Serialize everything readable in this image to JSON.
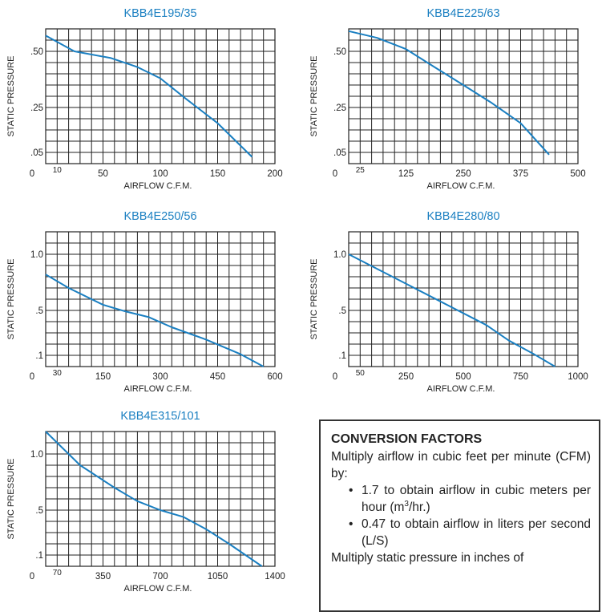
{
  "chart_data": [
    {
      "type": "line",
      "title": "KBB4E195/35",
      "xlabel": "AIRFLOW C.F.M.",
      "ylabel": "STATIC PRESSURE",
      "xlim": [
        0,
        200
      ],
      "ylim": [
        0,
        0.6
      ],
      "x_ticks": [
        "0",
        "10",
        "50",
        "100",
        "150",
        "200"
      ],
      "y_ticks": [
        ".05",
        ".25",
        ".50"
      ],
      "grid": true,
      "series": [
        {
          "x": [
            0,
            25,
            57,
            80,
            100,
            122,
            150,
            180
          ],
          "y": [
            0.57,
            0.5,
            0.47,
            0.43,
            0.38,
            0.29,
            0.18,
            0.03
          ]
        }
      ]
    },
    {
      "type": "line",
      "title": "KBB4E225/63",
      "xlabel": "AIRFLOW C.F.M.",
      "ylabel": "STATIC PRESSURE",
      "xlim": [
        0,
        500
      ],
      "ylim": [
        0,
        0.6
      ],
      "x_ticks": [
        "0",
        "25",
        "125",
        "250",
        "375",
        "500"
      ],
      "y_ticks": [
        ".05",
        ".25",
        ".50"
      ],
      "grid": true,
      "series": [
        {
          "x": [
            0,
            62,
            125,
            187,
            250,
            312,
            375,
            437
          ],
          "y": [
            0.59,
            0.56,
            0.51,
            0.43,
            0.35,
            0.27,
            0.18,
            0.04
          ]
        }
      ]
    },
    {
      "type": "line",
      "title": "KBB4E250/56",
      "xlabel": "AIRFLOW C.F.M.",
      "ylabel": "STATIC PRESSURE",
      "xlim": [
        0,
        600
      ],
      "ylim": [
        0,
        1.2
      ],
      "x_ticks": [
        "0",
        "30",
        "150",
        "300",
        "450",
        "600"
      ],
      "y_ticks": [
        ".1",
        ".5",
        "1.0"
      ],
      "grid": true,
      "series": [
        {
          "x": [
            0,
            60,
            150,
            210,
            270,
            330,
            420,
            510,
            570
          ],
          "y": [
            0.82,
            0.7,
            0.55,
            0.49,
            0.44,
            0.35,
            0.24,
            0.11,
            0.0
          ]
        }
      ]
    },
    {
      "type": "line",
      "title": "KBB4E280/80",
      "xlabel": "AIRFLOW C.F.M.",
      "ylabel": "STATIC PRESSURE",
      "xlim": [
        0,
        1000
      ],
      "ylim": [
        0,
        1.2
      ],
      "x_ticks": [
        "0",
        "50",
        "250",
        "500",
        "750",
        "1000"
      ],
      "y_ticks": [
        ".1",
        ".5",
        "1.0"
      ],
      "grid": true,
      "series": [
        {
          "x": [
            0,
            200,
            400,
            600,
            700,
            800,
            900
          ],
          "y": [
            1.0,
            0.79,
            0.58,
            0.37,
            0.23,
            0.12,
            0.0
          ]
        }
      ]
    },
    {
      "type": "line",
      "title": "KBB4E315/101",
      "xlabel": "AIRFLOW C.F.M.",
      "ylabel": "STATIC PRESSURE",
      "xlim": [
        0,
        1400
      ],
      "ylim": [
        0,
        1.2
      ],
      "x_ticks": [
        "0",
        "70",
        "350",
        "700",
        "1050",
        "1400"
      ],
      "y_ticks": [
        ".1",
        ".5",
        "1.0"
      ],
      "grid": true,
      "series": [
        {
          "x": [
            0,
            140,
            210,
            420,
            560,
            700,
            840,
            980,
            1120,
            1320
          ],
          "y": [
            1.2,
            1.0,
            0.9,
            0.7,
            0.58,
            0.5,
            0.44,
            0.33,
            0.2,
            0.0
          ]
        }
      ]
    }
  ],
  "conversion": {
    "heading": "CONVERSION FACTORS",
    "intro": "Multiply airflow in cubic feet per minute (CFM) by:",
    "bullets": [
      {
        "before": "1.7 to obtain airflow in cubic meters per hour (m",
        "sup": "3",
        "after": "/hr.)"
      },
      {
        "before": "0.47 to obtain airflow in liters per second (L/S)",
        "sup": "",
        "after": ""
      }
    ],
    "footer": "Multiply static pressure in inches of"
  },
  "colors": {
    "title": "#1a7fc1",
    "curve": "#1a7fc1",
    "grid": "#222222"
  }
}
